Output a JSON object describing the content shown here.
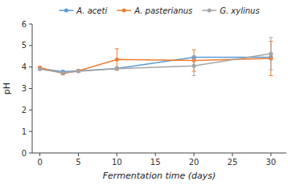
{
  "chart_data": {
    "type": "line",
    "x": [
      0,
      3,
      5,
      10,
      20,
      30
    ],
    "series": [
      {
        "name": "A. aceti",
        "color": "#5B9BD5",
        "values": [
          3.93,
          3.78,
          3.82,
          3.93,
          4.45,
          4.45
        ],
        "errors": [
          0.05,
          0.05,
          0.05,
          0.07,
          0.05,
          0.1
        ]
      },
      {
        "name": "A. pasterianus",
        "color": "#ED7D31",
        "values": [
          3.97,
          3.7,
          3.82,
          4.35,
          4.3,
          4.4
        ],
        "errors": [
          0.05,
          0.05,
          0.05,
          0.5,
          0.5,
          0.8
        ]
      },
      {
        "name": "G. xylinus",
        "color": "#A5A5A5",
        "values": [
          3.9,
          3.73,
          3.8,
          3.92,
          4.05,
          4.62
        ],
        "errors": [
          0.05,
          0.05,
          0.05,
          0.07,
          0.45,
          0.75
        ]
      }
    ],
    "xlabel": "Fermentation time (days)",
    "ylabel": "pH",
    "xlim": [
      -1,
      32
    ],
    "ylim": [
      0.0,
      6.0
    ],
    "xticks": [
      0,
      5,
      10,
      15,
      20,
      25,
      30
    ],
    "yticks": [
      0,
      1,
      2,
      3,
      4,
      5,
      6
    ],
    "marker": "circle",
    "legend": "top",
    "grid": false
  }
}
